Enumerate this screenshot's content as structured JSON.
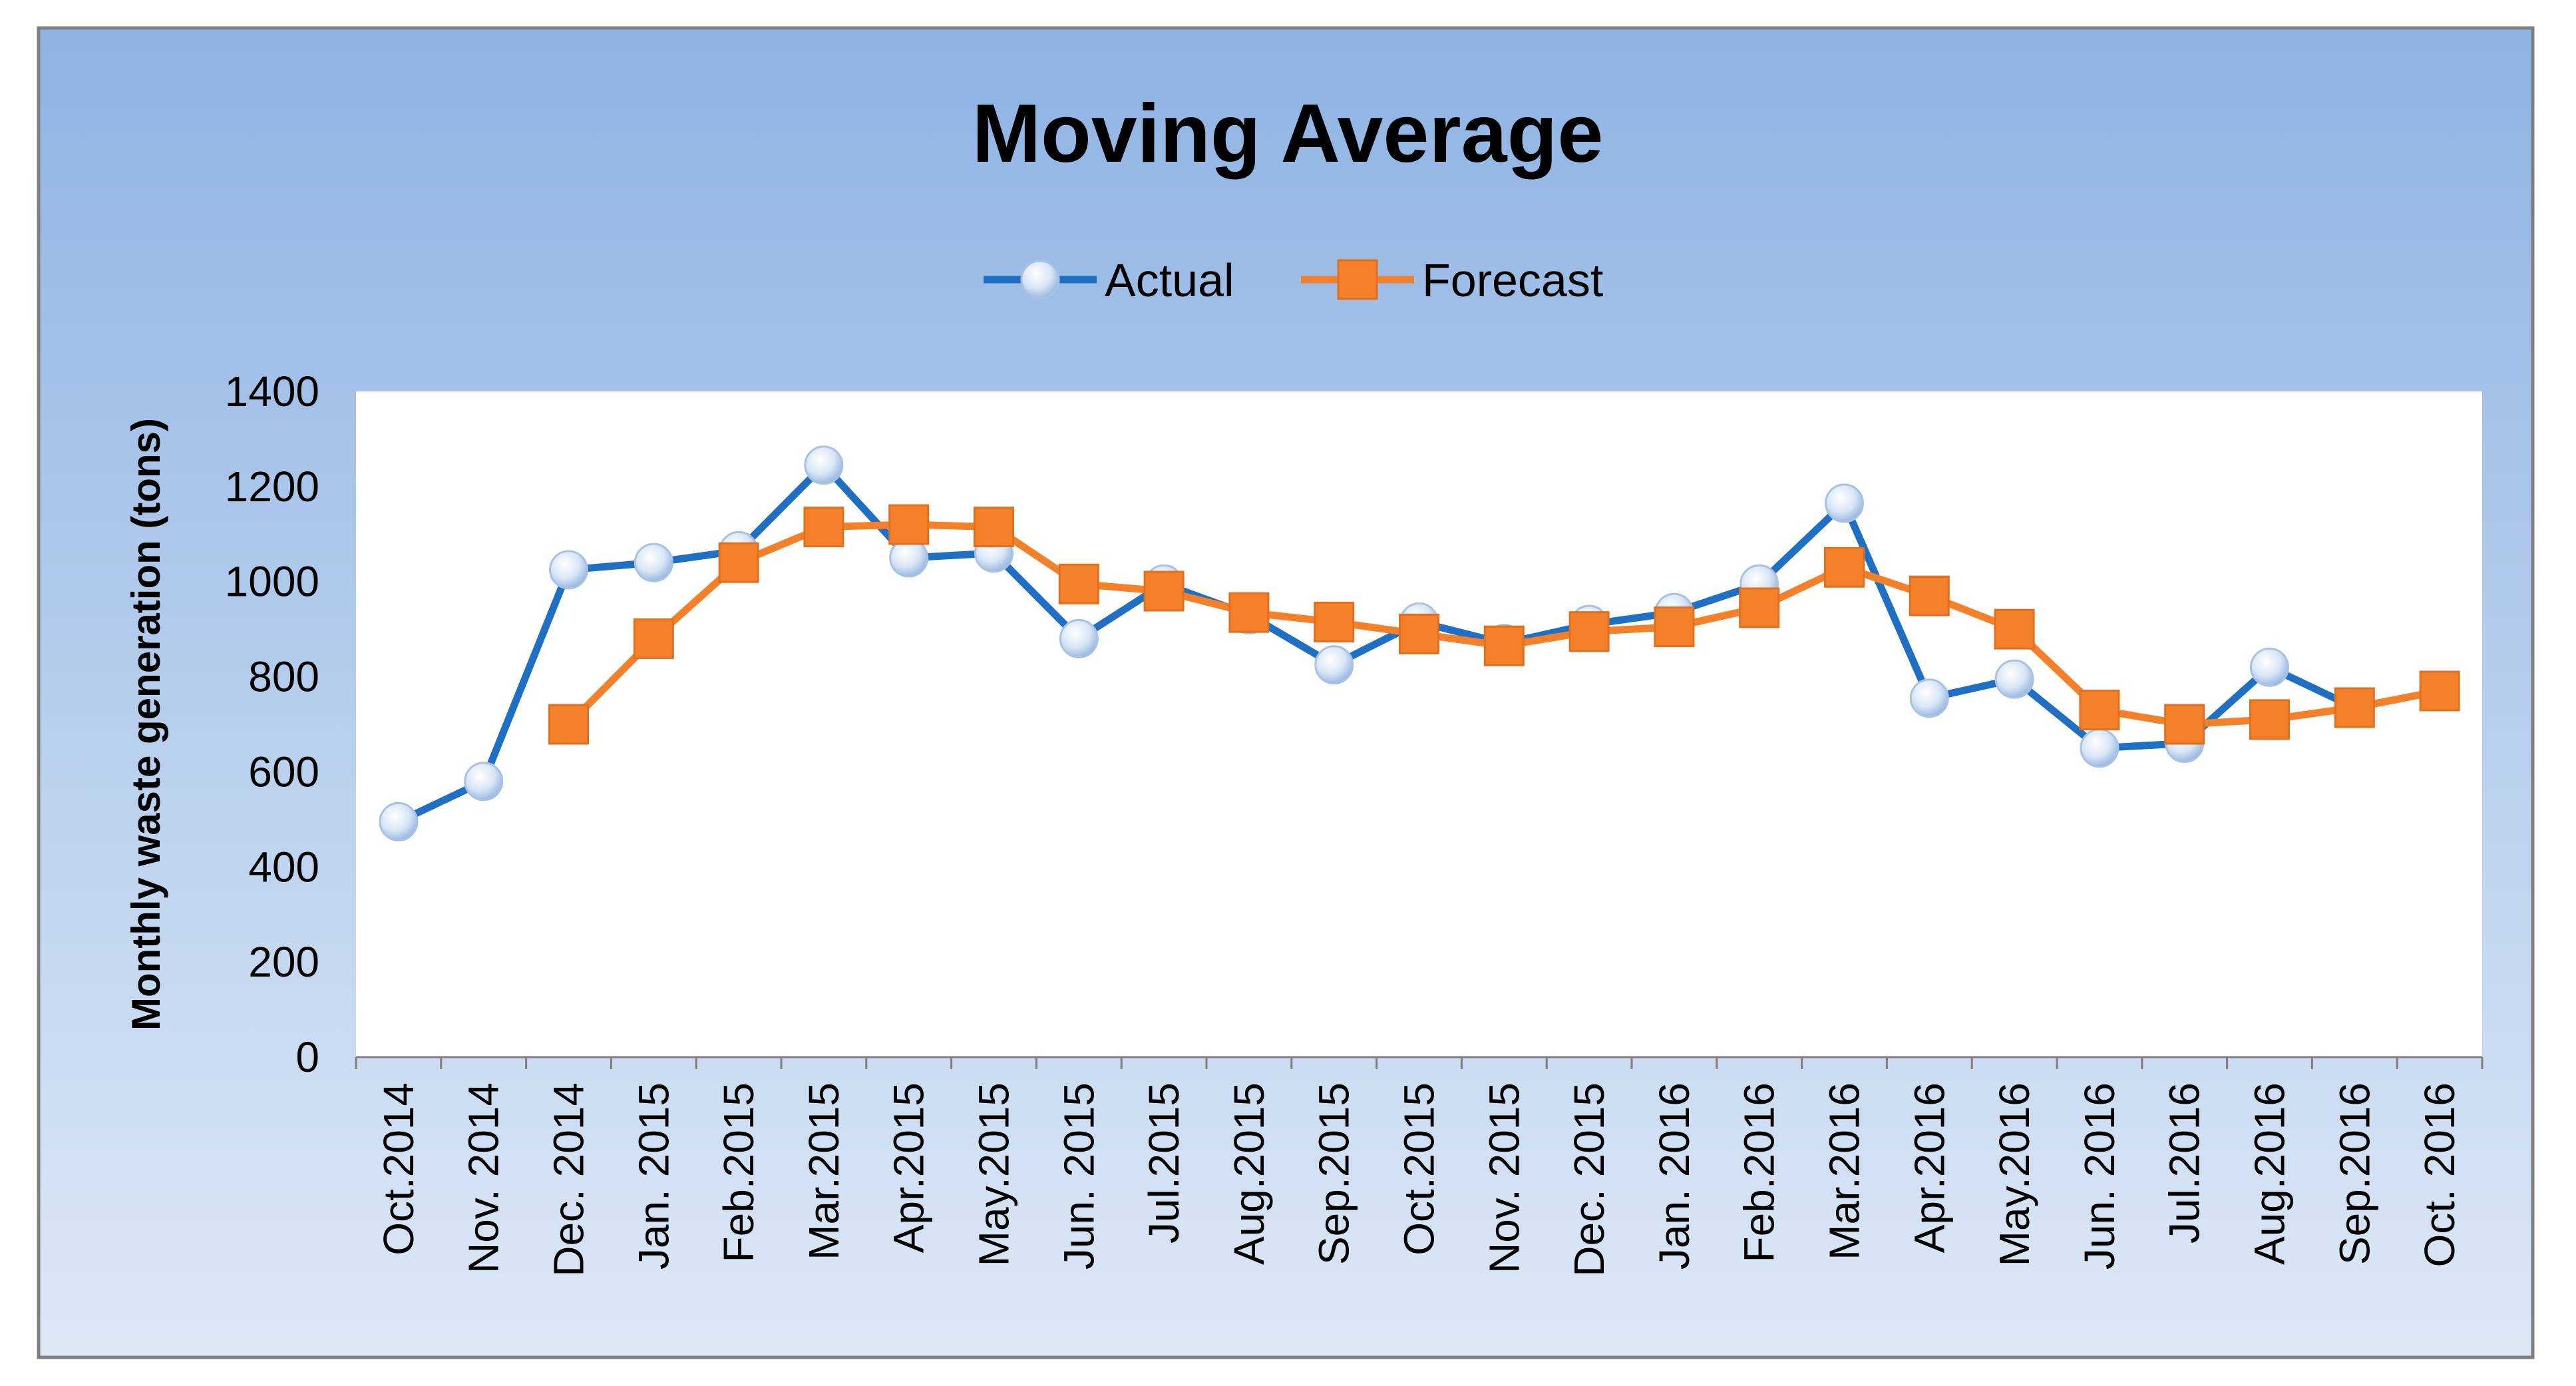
{
  "chart_data": {
    "type": "line",
    "title": "Moving Average",
    "xlabel": "",
    "ylabel": "Monthly waste generation  (tons)",
    "ylim": [
      0,
      1400
    ],
    "yticks": [
      "0",
      "200",
      "400",
      "600",
      "800",
      "1000",
      "1200",
      "1400"
    ],
    "grid": false,
    "legend_position": "top-center",
    "categories": [
      "Oct.2014",
      "Nov. 2014",
      "Dec. 2014",
      "Jan. 2015",
      "Feb.2015",
      "Mar.2015",
      "Apr.2015",
      "May.2015",
      "Jun. 2015",
      "Jul.2015",
      "Aug.2015",
      "Sep.2015",
      "Oct.2015",
      "Nov. 2015",
      "Dec. 2015",
      "Jan. 2016",
      "Feb.2016",
      "Mar.2016",
      "Apr.2016",
      "May.2016",
      "Jun. 2016",
      "Jul.2016",
      "Aug.2016",
      "Sep.2016",
      "Oct. 2016"
    ],
    "series": [
      {
        "name": "Actual",
        "color": "#1f6fc5",
        "marker": "circle",
        "values": [
          495,
          580,
          1025,
          1040,
          1065,
          1245,
          1050,
          1060,
          880,
          995,
          930,
          825,
          915,
          870,
          910,
          935,
          995,
          1165,
          755,
          795,
          650,
          660,
          820,
          735,
          770
        ]
      },
      {
        "name": "Forecast",
        "color": "#f4802a",
        "marker": "square",
        "values": [
          null,
          null,
          700,
          880,
          1040,
          1115,
          1120,
          1115,
          995,
          980,
          935,
          915,
          890,
          865,
          895,
          905,
          945,
          1030,
          970,
          900,
          730,
          700,
          710,
          735,
          770
        ]
      }
    ]
  }
}
